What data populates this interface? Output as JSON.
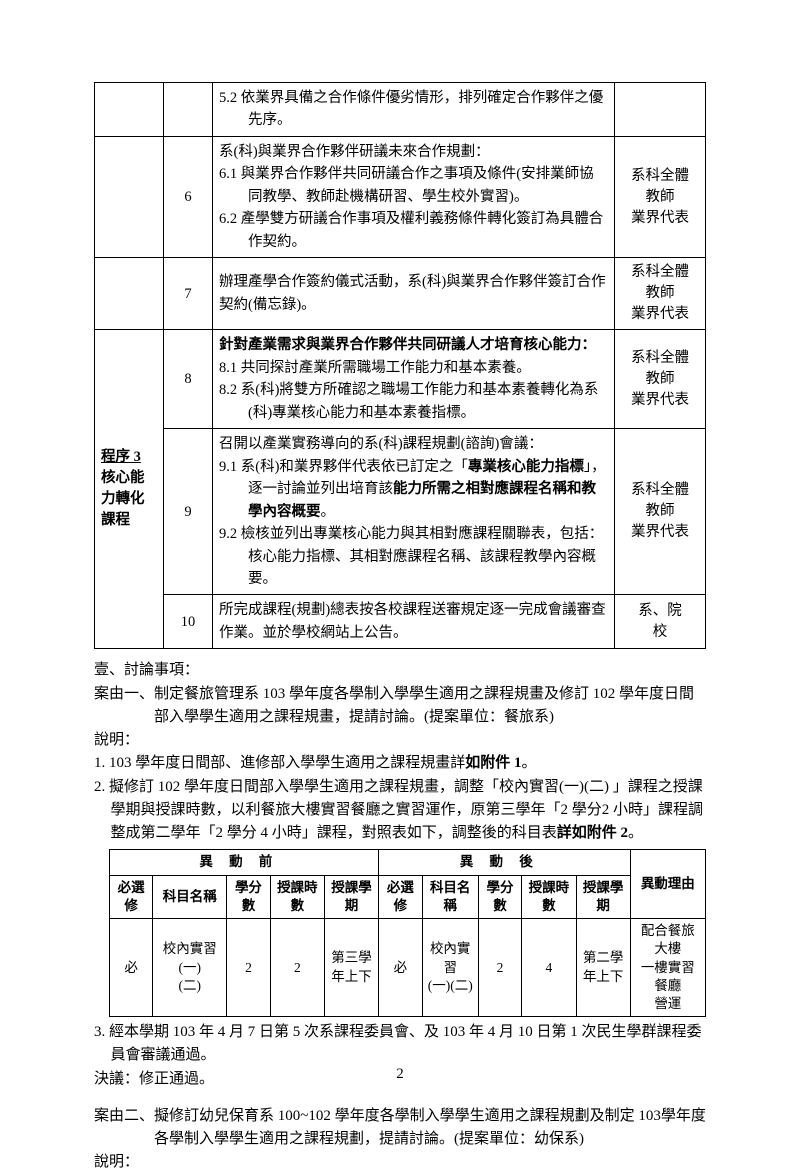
{
  "page_number": "2",
  "proc_table": {
    "rows": [
      {
        "step": "",
        "num": "",
        "body": "5.2 依業界具備之合作條件優劣情形，排列確定合作夥伴之優先序。",
        "who": ""
      },
      {
        "step": "",
        "num": "6",
        "body_lines": [
          "系(科)與業界合作夥伴研議未來合作規劃：",
          "6.1 與業界合作夥伴共同研議合作之事項及條件(安排業師協同教學、教師赴機構研習、學生校外實習)。",
          "6.2 產學雙方研議合作事項及權利義務條件轉化簽訂為具體合作契約。"
        ],
        "who": "系科全體\n教師\n業界代表"
      },
      {
        "step": "",
        "num": "7",
        "body": "辦理產學合作簽約儀式活動，系(科)與業界合作夥伴簽訂合作契約(備忘錄)。",
        "who": "系科全體\n教師\n業界代表"
      },
      {
        "step": "程序 3\n核心能\n力轉化\n課程",
        "step_rowspan": 3,
        "num": "8",
        "body_lines": [
          "針對產業需求與業界合作夥伴共同研議人才培育核心能力：",
          "8.1 共同探討產業所需職場工作能力和基本素養。",
          "8.2 系(科)將雙方所確認之職場工作能力和基本素養轉化為系(科)專業核心能力和基本素養指標。"
        ],
        "body_bold_first": true,
        "who": "系科全體\n教師\n業界代表"
      },
      {
        "num": "9",
        "body_lines": [
          "召開以產業實務導向的系(科)課程規劃(諮詢)會議：",
          "9.1 系(科)和業界夥伴代表依已訂定之「專業核心能力指標」，逐一討論並列出培育該能力所需之相對應課程名稱和教學內容概要。",
          "9.2 檢核並列出專業核心能力與其相對應課程關聯表，包括：核心能力指標、其相對應課程名稱、該課程教學內容概要。"
        ],
        "body_inline_bold": {
          "0": [],
          "1": [
            "專業核心能力指標",
            "能力所需之相對應課程名稱和教學內容概要"
          ],
          "2": []
        },
        "who": "系科全體\n教師\n業界代表"
      },
      {
        "num": "10",
        "body": "所完成課程(規劃)總表按各校課程送審規定逐一完成會議審查作業。並於學校網站上公告。",
        "who": "系、院\n校"
      }
    ]
  },
  "text": {
    "heading1": "壹、討論事項：",
    "case1": "案由一、制定餐旅管理系 103 學年度各學制入學學生適用之課程規畫及修訂 102 學年度日間部入學學生適用之課程規畫，提請討論。(提案單位：餐旅系)",
    "explain_label": "說明：",
    "item1": "1. 103 學年度日間部、進修部入學學生適用之課程規畫詳如附件 1。",
    "item1_bold_tail": "如附件 1",
    "item2": "2. 擬修訂 102 學年度日間部入學學生適用之課程規畫，調整「校內實習(一)(二) 」課程之授課學期與授課時數，以利餐旅大樓實習餐廳之實習運作，原第三學年「2 學分2 小時」課程調整成第二學年「2 學分 4 小時」課程，對照表如下，調整後的科目表詳如附件 2。",
    "item2_bold_tail": "詳如附件 2",
    "item3": "3. 經本學期 103 年 4 月 7 日第 5 次系課程委員會、及 103 年 4 月 10 日第 1 次民生學群課程委員會審議通過。",
    "decision_label": "決議：",
    "decision_text": "修正通過。",
    "case2": "案由二、擬修訂幼兒保育系 100~102 學年度各學制入學學生適用之課程規劃及制定 103學年度各學制入學學生適用之課程規劃，提請討論。(提案單位：幼保系)",
    "explain_label2": "說明："
  },
  "change_table": {
    "group_before": "異動前",
    "group_after": "異動後",
    "reason_hdr": "異動理由",
    "headers": [
      "必選修",
      "科目名稱",
      "學分數",
      "授課時數",
      "授課學期"
    ],
    "row": {
      "before": {
        "req": "必",
        "name": "校內實習(一)\n(二)",
        "credits": "2",
        "hours": "2",
        "term": "第三學\n年上下"
      },
      "after": {
        "req": "必",
        "name": "校內實習\n(一)(二)",
        "credits": "2",
        "hours": "4",
        "term": "第二學\n年上下"
      },
      "reason": "配合餐旅大樓\n一樓實習餐廳\n營運"
    }
  }
}
